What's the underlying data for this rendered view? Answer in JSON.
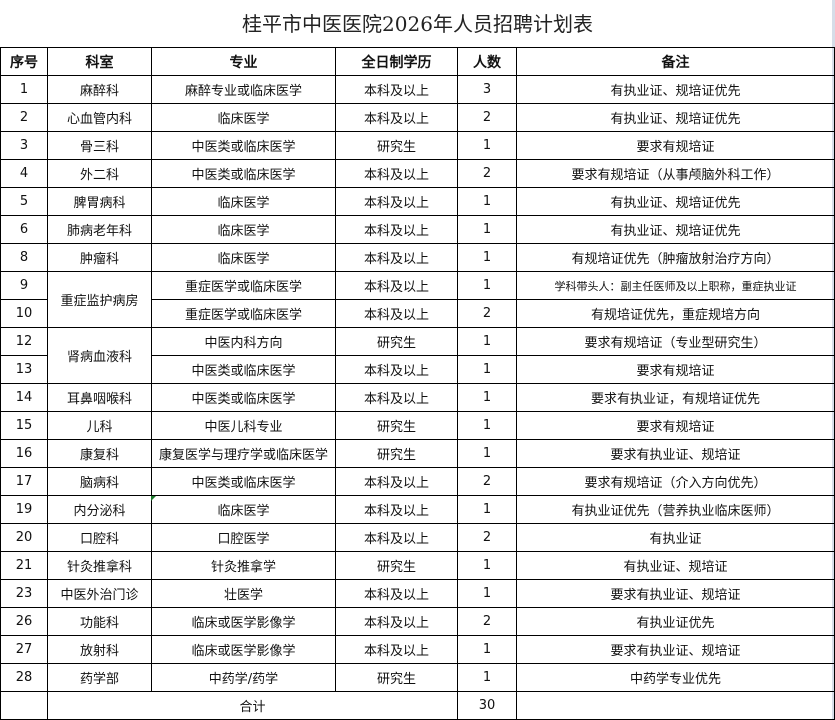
{
  "title": "桂平市中医医院2026年人员招聘计划表",
  "headers": [
    "序号",
    "科室",
    "专业",
    "全日制学历",
    "人数",
    "备注"
  ],
  "rows": [
    {
      "no": "1",
      "dept": "麻醉科",
      "major": "麻醉专业或临床医学",
      "edu": "本科及以上",
      "count": "3",
      "note": "有执业证、规培证优先"
    },
    {
      "no": "2",
      "dept": "心血管内科",
      "major": "临床医学",
      "edu": "本科及以上",
      "count": "2",
      "note": "有执业证、规培证优先"
    },
    {
      "no": "3",
      "dept": "骨三科",
      "major": "中医类或临床医学",
      "edu": "研究生",
      "count": "1",
      "note": "要求有规培证"
    },
    {
      "no": "4",
      "dept": "外二科",
      "major": "中医类或临床医学",
      "edu": "本科及以上",
      "count": "2",
      "note": "要求有规培证（从事颅脑外科工作）"
    },
    {
      "no": "5",
      "dept": "脾胃病科",
      "major": "临床医学",
      "edu": "本科及以上",
      "count": "1",
      "note": "有执业证、规培证优先"
    },
    {
      "no": "6",
      "dept": "肺病老年科",
      "major": "临床医学",
      "edu": "本科及以上",
      "count": "1",
      "note": "有执业证、规培证优先"
    },
    {
      "no": "8",
      "dept": "肿瘤科",
      "major": "临床医学",
      "edu": "本科及以上",
      "count": "1",
      "note": "有规培证优先（肿瘤放射治疗方向）"
    },
    {
      "no": "9",
      "dept": "重症监护病房",
      "major": "重症医学或临床医学",
      "edu": "本科及以上",
      "count": "1",
      "note": "学科带头人：副主任医师及以上职称，重症执业证"
    },
    {
      "no": "10",
      "dept": "",
      "major": "重症医学或临床医学",
      "edu": "本科及以上",
      "count": "2",
      "note": "有规培证优先，重症规培方向"
    },
    {
      "no": "12",
      "dept": "肾病血液科",
      "major": "中医内科方向",
      "edu": "研究生",
      "count": "1",
      "note": "要求有规培证（专业型研究生）"
    },
    {
      "no": "13",
      "dept": "",
      "major": "中医类或临床医学",
      "edu": "本科及以上",
      "count": "1",
      "note": "要求有规培证"
    },
    {
      "no": "14",
      "dept": "耳鼻咽喉科",
      "major": "中医类或临床医学",
      "edu": "本科及以上",
      "count": "1",
      "note": "要求有执业证，有规培证优先"
    },
    {
      "no": "15",
      "dept": "儿科",
      "major": "中医儿科专业",
      "edu": "研究生",
      "count": "1",
      "note": "要求有规培证"
    },
    {
      "no": "16",
      "dept": "康复科",
      "major": "康复医学与理疗学或临床医学",
      "edu": "研究生",
      "count": "1",
      "note": "要求有执业证、规培证"
    },
    {
      "no": "17",
      "dept": "脑病科",
      "major": "中医类或临床医学",
      "edu": "本科及以上",
      "count": "2",
      "note": "要求有规培证（介入方向优先）"
    },
    {
      "no": "19",
      "dept": "内分泌科",
      "major": "临床医学",
      "edu": "本科及以上",
      "count": "1",
      "note": "有执业证优先（营养执业临床医师）"
    },
    {
      "no": "20",
      "dept": "口腔科",
      "major": "口腔医学",
      "edu": "本科及以上",
      "count": "2",
      "note": "有执业证"
    },
    {
      "no": "21",
      "dept": "针灸推拿科",
      "major": "针灸推拿学",
      "edu": "研究生",
      "count": "1",
      "note": "有执业证、规培证"
    },
    {
      "no": "23",
      "dept": "中医外治门诊",
      "major": "壮医学",
      "edu": "本科及以上",
      "count": "1",
      "note": "要求有执业证、规培证"
    },
    {
      "no": "26",
      "dept": "功能科",
      "major": "临床或医学影像学",
      "edu": "本科及以上",
      "count": "2",
      "note": "有执业证优先"
    },
    {
      "no": "27",
      "dept": "放射科",
      "major": "临床或医学影像学",
      "edu": "本科及以上",
      "count": "1",
      "note": "要求有执业证、规培证"
    },
    {
      "no": "28",
      "dept": "药学部",
      "major": "中药学/药学",
      "edu": "研究生",
      "count": "1",
      "note": "中药学专业优先"
    }
  ],
  "total": {
    "label": "合计",
    "count": "30"
  }
}
